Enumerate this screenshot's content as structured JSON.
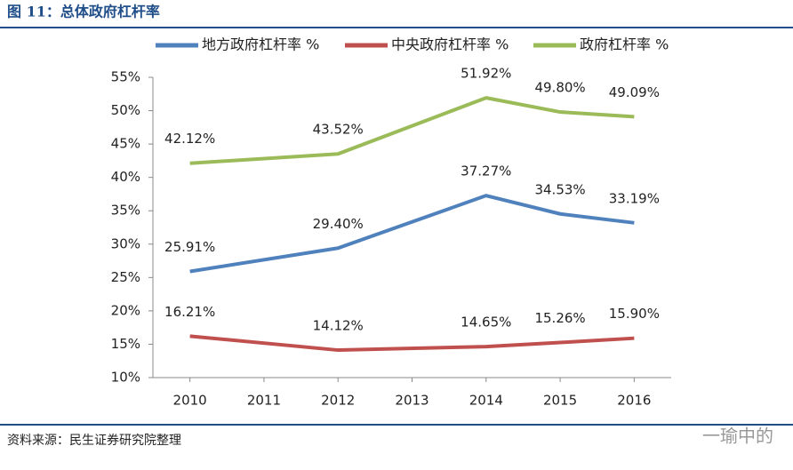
{
  "chart_data": {
    "type": "line",
    "title": "图 11：总体政府杠杆率",
    "x": [
      2010,
      2012,
      2014,
      2015,
      2016
    ],
    "xlim": [
      2009.5,
      2016.5
    ],
    "xticks": [
      2010,
      2011,
      2012,
      2013,
      2014,
      2015,
      2016
    ],
    "ylim": [
      10,
      55
    ],
    "yticks": [
      {
        "value": 10,
        "label": "10%"
      },
      {
        "value": 15,
        "label": "15%"
      },
      {
        "value": 20,
        "label": "20%"
      },
      {
        "value": 25,
        "label": "25%"
      },
      {
        "value": 30,
        "label": "30%"
      },
      {
        "value": 35,
        "label": "35%"
      },
      {
        "value": 40,
        "label": "40%"
      },
      {
        "value": 45,
        "label": "45%"
      },
      {
        "value": 50,
        "label": "50%"
      },
      {
        "value": 55,
        "label": "55%"
      }
    ],
    "grid": false,
    "legend": "top",
    "series": [
      {
        "name": "地方政府杠杆率 %",
        "color": "#4f81bd",
        "values": [
          25.91,
          29.4,
          37.27,
          34.53,
          33.19
        ],
        "value_labels": [
          "25.91%",
          "29.40%",
          "37.27%",
          "34.53%",
          "33.19%"
        ]
      },
      {
        "name": "中央政府杠杆率 %",
        "color": "#c0504d",
        "values": [
          16.21,
          14.12,
          14.65,
          15.26,
          15.9
        ],
        "value_labels": [
          "16.21%",
          "14.12%",
          "14.65%",
          "15.26%",
          "15.90%"
        ]
      },
      {
        "name": "政府杠杆率 %",
        "color": "#9bbb59",
        "values": [
          42.12,
          43.52,
          51.92,
          49.8,
          49.09
        ],
        "value_labels": [
          "42.12%",
          "43.52%",
          "51.92%",
          "49.80%",
          "49.09%"
        ]
      }
    ],
    "source": "资料来源：民生证券研究院整理",
    "watermark": "一瑜中的"
  }
}
